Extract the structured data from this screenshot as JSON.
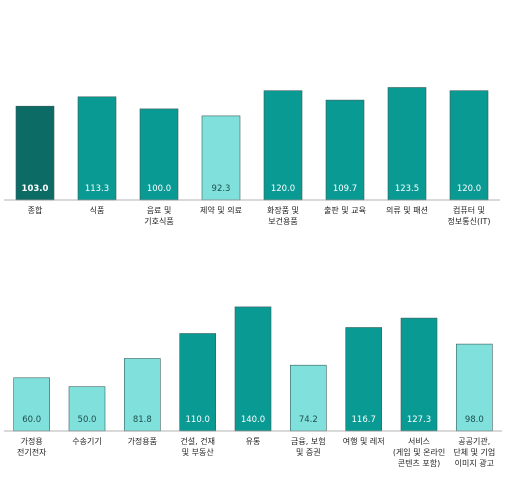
{
  "chart_data": [
    {
      "type": "bar",
      "categories": [
        [
          "종합"
        ],
        [
          "식품"
        ],
        [
          "음료 및",
          "기호식품"
        ],
        [
          "제약 및 의료"
        ],
        [
          "화장품 및",
          "보건용품"
        ],
        [
          "출판 및 교육"
        ],
        [
          "의류 및 패션"
        ],
        [
          "컴퓨터 및",
          "정보통신(IT)"
        ]
      ],
      "values": [
        103.0,
        113.3,
        100.0,
        92.3,
        120.0,
        109.7,
        123.5,
        120.0
      ],
      "value_labels": [
        "103.0",
        "113.3",
        "100.0",
        "92.3",
        "120.0",
        "109.7",
        "123.5",
        "120.0"
      ],
      "colors": [
        "#0d6b66",
        "#0a9a94",
        "#0a9a94",
        "#7fe0dc",
        "#0a9a94",
        "#0a9a94",
        "#0a9a94",
        "#0a9a94"
      ],
      "ylim": [
        0,
        135
      ]
    },
    {
      "type": "bar",
      "categories": [
        [
          "가정용",
          "전기전자"
        ],
        [
          "수송기기"
        ],
        [
          "가정용품"
        ],
        [
          "건설, 건재",
          "및 부동산"
        ],
        [
          "유통"
        ],
        [
          "금융, 보험",
          "및 증권"
        ],
        [
          "여행 및 레저"
        ],
        [
          "서비스",
          "(게임 및 온라인",
          "콘텐츠 포함)"
        ],
        [
          "공공기관,",
          "단체 및 기업",
          "이미지 광고"
        ]
      ],
      "values": [
        60.0,
        50.0,
        81.8,
        110.0,
        140.0,
        74.2,
        116.7,
        127.3,
        98.0
      ],
      "value_labels": [
        "60.0",
        "50.0",
        "81.8",
        "110.0",
        "140.0",
        "74.2",
        "116.7",
        "127.3",
        "98.0"
      ],
      "colors": [
        "#7fe0dc",
        "#7fe0dc",
        "#7fe0dc",
        "#0a9a94",
        "#0a9a94",
        "#7fe0dc",
        "#0a9a94",
        "#0a9a94",
        "#7fe0dc"
      ],
      "ylim": [
        0,
        150
      ]
    }
  ]
}
